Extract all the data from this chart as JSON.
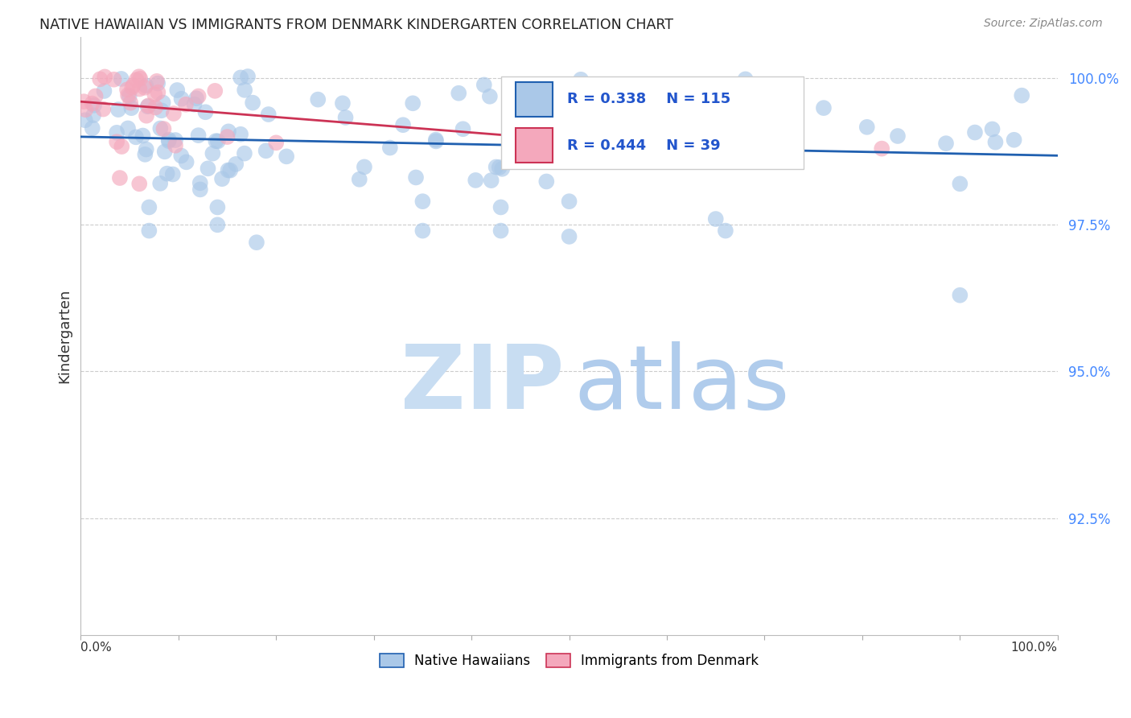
{
  "title": "NATIVE HAWAIIAN VS IMMIGRANTS FROM DENMARK KINDERGARTEN CORRELATION CHART",
  "source_text": "Source: ZipAtlas.com",
  "ylabel": "Kindergarten",
  "ytick_labels": [
    "100.0%",
    "97.5%",
    "95.0%",
    "92.5%"
  ],
  "ytick_values": [
    1.0,
    0.975,
    0.95,
    0.925
  ],
  "xlim": [
    0.0,
    1.0
  ],
  "ylim": [
    0.905,
    1.007
  ],
  "blue_R": 0.338,
  "blue_N": 115,
  "pink_R": 0.444,
  "pink_N": 39,
  "legend_entries": [
    "Native Hawaiians",
    "Immigrants from Denmark"
  ],
  "blue_color": "#aac8e8",
  "pink_color": "#f4a8bc",
  "blue_line_color": "#2060b0",
  "pink_line_color": "#cc3355",
  "watermark_zip_color": "#c8ddf2",
  "watermark_atlas_color": "#b0ccec",
  "background_color": "#ffffff",
  "grid_color": "#cccccc",
  "title_color": "#222222",
  "ytick_color": "#4488ff",
  "source_color": "#888888"
}
